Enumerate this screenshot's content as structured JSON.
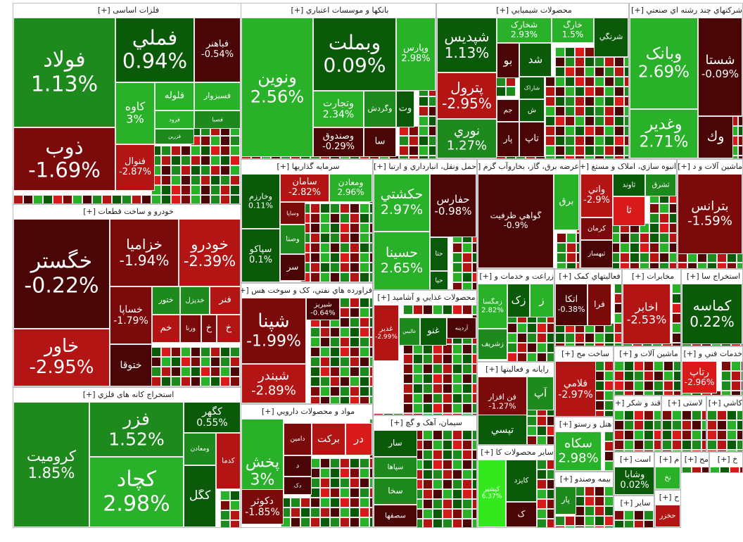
{
  "colors": {
    "dg": "#0a5a0a",
    "mg": "#1e8a1e",
    "lg": "#29b129",
    "bg": "#33e81c",
    "dr": "#4a0606",
    "mr": "#7b0b0b",
    "rr": "#b31414",
    "br": "#d81a1a",
    "gy": "#8a8a8a"
  },
  "expand_marker": "[+]",
  "sectors": [
    {
      "title": "فلزات اساسی",
      "tiles": [
        {
          "name": "فولاد",
          "pct": "1.13%",
          "c": "mg"
        },
        {
          "name": "ذوب",
          "pct": "-1.69%",
          "c": "mr"
        },
        {
          "name": "فملي",
          "pct": "0.94%",
          "c": "dg"
        },
        {
          "name": "فباهنر",
          "pct": "-0.54%",
          "c": "dr"
        },
        {
          "name": "کاوه",
          "pct": "3%",
          "c": "lg"
        },
        {
          "name": "فلوله",
          "pct": "",
          "c": "lg"
        },
        {
          "name": "فسبزوار",
          "pct": "",
          "c": "lg"
        },
        {
          "name": "فرود",
          "pct": "",
          "c": "lg"
        },
        {
          "name": "فصبا",
          "pct": "",
          "c": "mg"
        },
        {
          "name": "فزرين",
          "pct": "",
          "c": "mg"
        },
        {
          "name": "فنوال",
          "pct": "-2.87%",
          "c": "rr"
        }
      ]
    },
    {
      "title": "خودرو و ساخت قطعات",
      "tiles": [
        {
          "name": "خگستر",
          "pct": "-0.22%",
          "c": "dr"
        },
        {
          "name": "خاور",
          "pct": "-2.95%",
          "c": "rr"
        },
        {
          "name": "خزاميا",
          "pct": "-1.94%",
          "c": "mr"
        },
        {
          "name": "خودرو",
          "pct": "-2.39%",
          "c": "rr"
        },
        {
          "name": "خساپا",
          "pct": "-1.79%",
          "c": "mr"
        },
        {
          "name": "ختور",
          "pct": "",
          "c": "mg"
        },
        {
          "name": "خديزل",
          "pct": "",
          "c": "mg"
        },
        {
          "name": "فنر",
          "pct": "",
          "c": "rr"
        },
        {
          "name": "خم",
          "pct": "",
          "c": "rr"
        },
        {
          "name": "ورنا",
          "pct": "",
          "c": "mr"
        },
        {
          "name": "خ",
          "pct": "",
          "c": "mr"
        },
        {
          "name": "خ",
          "pct": "",
          "c": "rr"
        },
        {
          "name": "ختوقا",
          "pct": "",
          "c": "dr"
        }
      ]
    },
    {
      "title": "استخراج کانه های فلزي",
      "tiles": [
        {
          "name": "کروميت",
          "pct": "1.85%",
          "c": "mg"
        },
        {
          "name": "فزر",
          "pct": "1.52%",
          "c": "mg"
        },
        {
          "name": "کچاد",
          "pct": "2.98%",
          "c": "lg"
        },
        {
          "name": "کگهر",
          "pct": "0.55%",
          "c": "dg"
        },
        {
          "name": "ومعادن",
          "pct": "",
          "c": "mg"
        },
        {
          "name": "کدما",
          "pct": "",
          "c": "rr"
        },
        {
          "name": "کگل",
          "pct": "",
          "c": "dg"
        }
      ]
    },
    {
      "title": "بانکها و موسسات اعتباري",
      "tiles": [
        {
          "name": "ونوين",
          "pct": "2.56%",
          "c": "lg"
        },
        {
          "name": "وبملت",
          "pct": "0.09%",
          "c": "dg"
        },
        {
          "name": "وپارس",
          "pct": "2.98%",
          "c": "lg"
        },
        {
          "name": "وتجارت",
          "pct": "2.34%",
          "c": "lg"
        },
        {
          "name": "وگردش",
          "pct": "",
          "c": "mg"
        },
        {
          "name": "وت",
          "pct": "",
          "c": "dg"
        },
        {
          "name": "وصندوق",
          "pct": "-0.29%",
          "c": "dr"
        },
        {
          "name": "سا",
          "pct": "",
          "c": "dr"
        }
      ]
    },
    {
      "title": "محصولات شيميايي",
      "tiles": [
        {
          "name": "شپديس",
          "pct": "1.13%",
          "c": "dg"
        },
        {
          "name": "شخارک",
          "pct": "2.93%",
          "c": "lg"
        },
        {
          "name": "خارگ",
          "pct": "1.5%",
          "c": "lg"
        },
        {
          "name": "شرنگي",
          "pct": "",
          "c": "dg"
        },
        {
          "name": "پترول",
          "pct": "-2.95%",
          "c": "rr"
        },
        {
          "name": "بو",
          "pct": "",
          "c": "dr"
        },
        {
          "name": "شد",
          "pct": "",
          "c": "dg"
        },
        {
          "name": "شاراک",
          "pct": "",
          "c": "dg"
        },
        {
          "name": "جم",
          "pct": "",
          "c": "dr"
        },
        {
          "name": "ش",
          "pct": "",
          "c": "dg"
        },
        {
          "name": "نوري",
          "pct": "1.27%",
          "c": "mg"
        },
        {
          "name": "پار",
          "pct": "",
          "c": "dr"
        },
        {
          "name": "تاپ",
          "pct": "",
          "c": "dr"
        }
      ]
    },
    {
      "title": "شرکتهاي چند رشته اي صنعتي",
      "tiles": [
        {
          "name": "وبانک",
          "pct": "2.69%",
          "c": "lg"
        },
        {
          "name": "شستا",
          "pct": "-0.09%",
          "c": "dr"
        },
        {
          "name": "وغدير",
          "pct": "2.71%",
          "c": "lg"
        },
        {
          "name": "وك",
          "pct": "",
          "c": "dr"
        }
      ]
    },
    {
      "title": "سرمايه گذاريها",
      "tiles": [
        {
          "name": "وخارزم",
          "pct": "0.11%",
          "c": "dg"
        },
        {
          "name": "سپاکو",
          "pct": "0.1%",
          "c": "dg"
        },
        {
          "name": "سامان",
          "pct": "-2.82%",
          "c": "rr"
        },
        {
          "name": "ومعادن",
          "pct": "2.96%",
          "c": "lg"
        },
        {
          "name": "وساپا",
          "pct": "",
          "c": "mr"
        },
        {
          "name": "وصنا",
          "pct": "",
          "c": "mg"
        },
        {
          "name": "سر",
          "pct": "",
          "c": "dr"
        }
      ]
    },
    {
      "title": "حمل ونقل، انبارداري و ارتبا",
      "tiles": [
        {
          "name": "حکشتي",
          "pct": "2.97%",
          "c": "lg"
        },
        {
          "name": "حفارس",
          "pct": "-0.98%",
          "c": "dr"
        },
        {
          "name": "حسينا",
          "pct": "2.65%",
          "c": "lg"
        },
        {
          "name": "حتا",
          "pct": "",
          "c": "dg"
        },
        {
          "name": "حپا",
          "pct": "",
          "c": "dg"
        }
      ]
    },
    {
      "title": "عرضه برق، گاز، بخاروآب گرم",
      "tiles": [
        {
          "name": "گواهي ظرفيت",
          "pct": "-0.9%",
          "c": "dr"
        },
        {
          "name": "برق",
          "pct": "",
          "c": "lg"
        }
      ]
    },
    {
      "title": "انبوه سازي، املاک و مستغ",
      "tiles": [
        {
          "name": "وآتي",
          "pct": "-2.9%",
          "c": "rr"
        },
        {
          "name": "ثاوند",
          "pct": "",
          "c": "dg"
        },
        {
          "name": "ثشرق",
          "pct": "",
          "c": "mg"
        },
        {
          "name": "ثا",
          "pct": "",
          "c": "br"
        },
        {
          "name": "کرمان",
          "pct": "",
          "c": "mr"
        },
        {
          "name": "ثبهساز",
          "pct": "",
          "c": "dr"
        }
      ]
    },
    {
      "title": "ماشين آلات و د",
      "tiles": [
        {
          "name": "بترانس",
          "pct": "-1.59%",
          "c": "mr"
        }
      ]
    },
    {
      "title": "فراورده هاي نفتي، کک و سوخت هس",
      "tiles": [
        {
          "name": "شپنا",
          "pct": "-1.99%",
          "c": "mr"
        },
        {
          "name": "شبندر",
          "pct": "-2.89%",
          "c": "rr"
        },
        {
          "name": "شبريز",
          "pct": "-0.64%",
          "c": "dr"
        }
      ]
    },
    {
      "title": "محصولات غذايي و آشاميد",
      "tiles": [
        {
          "name": "غدير",
          "pct": "-2.99%",
          "c": "rr"
        },
        {
          "name": "عاليس",
          "pct": "",
          "c": "mg"
        },
        {
          "name": "غنو",
          "pct": "",
          "c": "dg"
        },
        {
          "name": "آردينه",
          "pct": "",
          "c": "dr"
        }
      ]
    },
    {
      "title": "مواد و محصولات دارويي",
      "tiles": [
        {
          "name": "پخش",
          "pct": "3%",
          "c": "lg"
        },
        {
          "name": "دامين",
          "pct": "",
          "c": "mr"
        },
        {
          "name": "برکت",
          "pct": "",
          "c": "rr"
        },
        {
          "name": "در",
          "pct": "",
          "c": "br"
        },
        {
          "name": "د",
          "pct": "",
          "c": "dr"
        },
        {
          "name": "دک",
          "pct": "",
          "c": "dr"
        },
        {
          "name": "دکوثر",
          "pct": "-1.85%",
          "c": "mr"
        }
      ]
    },
    {
      "title": "سيمان، آهک و گچ",
      "tiles": [
        {
          "name": "سار",
          "pct": "",
          "c": "dg"
        },
        {
          "name": "سپاها",
          "pct": "",
          "c": "mg"
        },
        {
          "name": "سخا",
          "pct": "",
          "c": "mg"
        },
        {
          "name": "سصفها",
          "pct": "",
          "c": "dr"
        }
      ]
    },
    {
      "title": "زراعت و خدمات و",
      "tiles": [
        {
          "name": "زمگسا",
          "pct": "2.82%",
          "c": "lg"
        },
        {
          "name": "زک",
          "pct": "",
          "c": "dg"
        },
        {
          "name": "ز",
          "pct": "",
          "c": "lg"
        },
        {
          "name": "زشريف",
          "pct": "",
          "c": "mg"
        }
      ]
    },
    {
      "title": "فعاليتهاي کمک",
      "tiles": [
        {
          "name": "اتکا",
          "pct": "-0.38%",
          "c": "dr"
        },
        {
          "name": "فرا",
          "pct": "",
          "c": "mr"
        }
      ]
    },
    {
      "title": "مخابرات",
      "tiles": [
        {
          "name": "اخابر",
          "pct": "-2.53%",
          "c": "rr"
        }
      ]
    },
    {
      "title": "استخراج سا",
      "tiles": [
        {
          "name": "کماسه",
          "pct": "0.22%",
          "c": "dg"
        }
      ]
    },
    {
      "title": "رايانه و فعاليتها",
      "tiles": [
        {
          "name": "فن افزار",
          "pct": "-1.27%",
          "c": "mr"
        },
        {
          "name": "آپ",
          "pct": "",
          "c": "mg"
        },
        {
          "name": "تپسي",
          "pct": "",
          "c": "dg"
        }
      ]
    },
    {
      "title": "ساخت مح",
      "tiles": [
        {
          "name": "فلامي",
          "pct": "-2.97%",
          "c": "rr"
        }
      ]
    },
    {
      "title": "ماشين آلات و",
      "tiles": []
    },
    {
      "title": "خدمات فني و",
      "tiles": [
        {
          "name": "رتاپ",
          "pct": "-2.96%",
          "c": "br"
        }
      ]
    },
    {
      "title": "سایر محصولات کا",
      "tiles": [
        {
          "name": "کپشير",
          "pct": "6.37%",
          "c": "bg"
        },
        {
          "name": "کايزد",
          "pct": "",
          "c": "dg"
        },
        {
          "name": "ک",
          "pct": "",
          "c": "dr"
        }
      ]
    },
    {
      "title": "هتل و رستو",
      "tiles": [
        {
          "name": "سکاه",
          "pct": "2.98%",
          "c": "lg"
        }
      ]
    },
    {
      "title": "قند و شکر",
      "tiles": []
    },
    {
      "title": "لاستی",
      "tiles": []
    },
    {
      "title": "کاشي",
      "tiles": []
    },
    {
      "title": "بيمه وصندو",
      "tiles": [
        {
          "name": "پار",
          "pct": "",
          "c": "mg"
        }
      ]
    },
    {
      "title": "است",
      "tiles": [
        {
          "name": "وشابا",
          "pct": "0.02%",
          "c": "dg"
        }
      ]
    },
    {
      "title": "ساير",
      "tiles": []
    },
    {
      "title": "م",
      "tiles": [
        {
          "name": "نخ",
          "pct": "",
          "c": "lg"
        }
      ]
    },
    {
      "title": "مح",
      "tiles": []
    },
    {
      "title": "خ",
      "tiles": []
    },
    {
      "title": "ح",
      "tiles": [
        {
          "name": "حخزر",
          "pct": "",
          "c": "rr"
        }
      ]
    }
  ]
}
